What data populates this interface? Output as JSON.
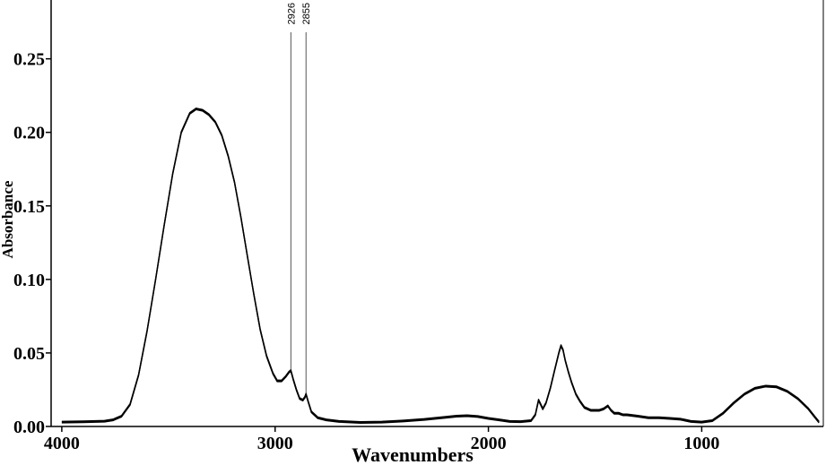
{
  "chart_data": {
    "type": "line",
    "xlabel": "Wavenumbers",
    "ylabel": "Absorbance",
    "xlim": [
      4050,
      430
    ],
    "ylim": [
      0.0,
      0.29
    ],
    "x_reversed": true,
    "x_ticks": [
      4000,
      3000,
      2000,
      1000
    ],
    "x_tick_labels": [
      "4000",
      "3000",
      "2000",
      "1000"
    ],
    "y_ticks": [
      0.0,
      0.05,
      0.1,
      0.15,
      0.2,
      0.25
    ],
    "y_tick_labels": [
      "0.00",
      "0.05",
      "0.10",
      "0.15",
      "0.20",
      "0.25"
    ],
    "grid": false,
    "annotations": [
      {
        "x": 2926,
        "label": "2926"
      },
      {
        "x": 2855,
        "label": "2855"
      }
    ],
    "series": [
      {
        "x": [
          4000,
          3900,
          3800,
          3760,
          3720,
          3680,
          3640,
          3600,
          3560,
          3520,
          3480,
          3440,
          3400,
          3370,
          3340,
          3310,
          3280,
          3250,
          3220,
          3190,
          3160,
          3130,
          3100,
          3070,
          3040,
          3010,
          2990,
          2970,
          2950,
          2935,
          2926,
          2915,
          2900,
          2885,
          2870,
          2860,
          2855,
          2845,
          2830,
          2800,
          2760,
          2700,
          2600,
          2500,
          2400,
          2300,
          2200,
          2150,
          2100,
          2050,
          2000,
          1950,
          1900,
          1850,
          1800,
          1780,
          1765,
          1755,
          1745,
          1730,
          1710,
          1690,
          1670,
          1660,
          1650,
          1640,
          1625,
          1610,
          1590,
          1570,
          1550,
          1520,
          1500,
          1480,
          1460,
          1440,
          1425,
          1410,
          1390,
          1370,
          1350,
          1300,
          1250,
          1200,
          1150,
          1100,
          1050,
          1000,
          950,
          900,
          850,
          800,
          750,
          700,
          650,
          600,
          550,
          500,
          470,
          450
        ],
        "y": [
          0.003,
          0.0032,
          0.0036,
          0.0045,
          0.007,
          0.015,
          0.035,
          0.065,
          0.1,
          0.137,
          0.172,
          0.2,
          0.213,
          0.216,
          0.215,
          0.212,
          0.207,
          0.198,
          0.184,
          0.166,
          0.142,
          0.116,
          0.09,
          0.066,
          0.048,
          0.036,
          0.031,
          0.031,
          0.034,
          0.037,
          0.038,
          0.032,
          0.025,
          0.019,
          0.018,
          0.02,
          0.022,
          0.017,
          0.01,
          0.006,
          0.0045,
          0.0035,
          0.0028,
          0.003,
          0.0038,
          0.0048,
          0.0063,
          0.007,
          0.0073,
          0.0068,
          0.0055,
          0.0045,
          0.0035,
          0.0033,
          0.004,
          0.008,
          0.018,
          0.015,
          0.012,
          0.016,
          0.026,
          0.038,
          0.05,
          0.055,
          0.052,
          0.045,
          0.037,
          0.03,
          0.022,
          0.017,
          0.013,
          0.011,
          0.011,
          0.011,
          0.012,
          0.014,
          0.011,
          0.009,
          0.009,
          0.008,
          0.008,
          0.007,
          0.006,
          0.006,
          0.0055,
          0.005,
          0.0035,
          0.003,
          0.004,
          0.009,
          0.016,
          0.022,
          0.026,
          0.0275,
          0.027,
          0.024,
          0.019,
          0.012,
          0.0065,
          0.003
        ]
      }
    ]
  }
}
